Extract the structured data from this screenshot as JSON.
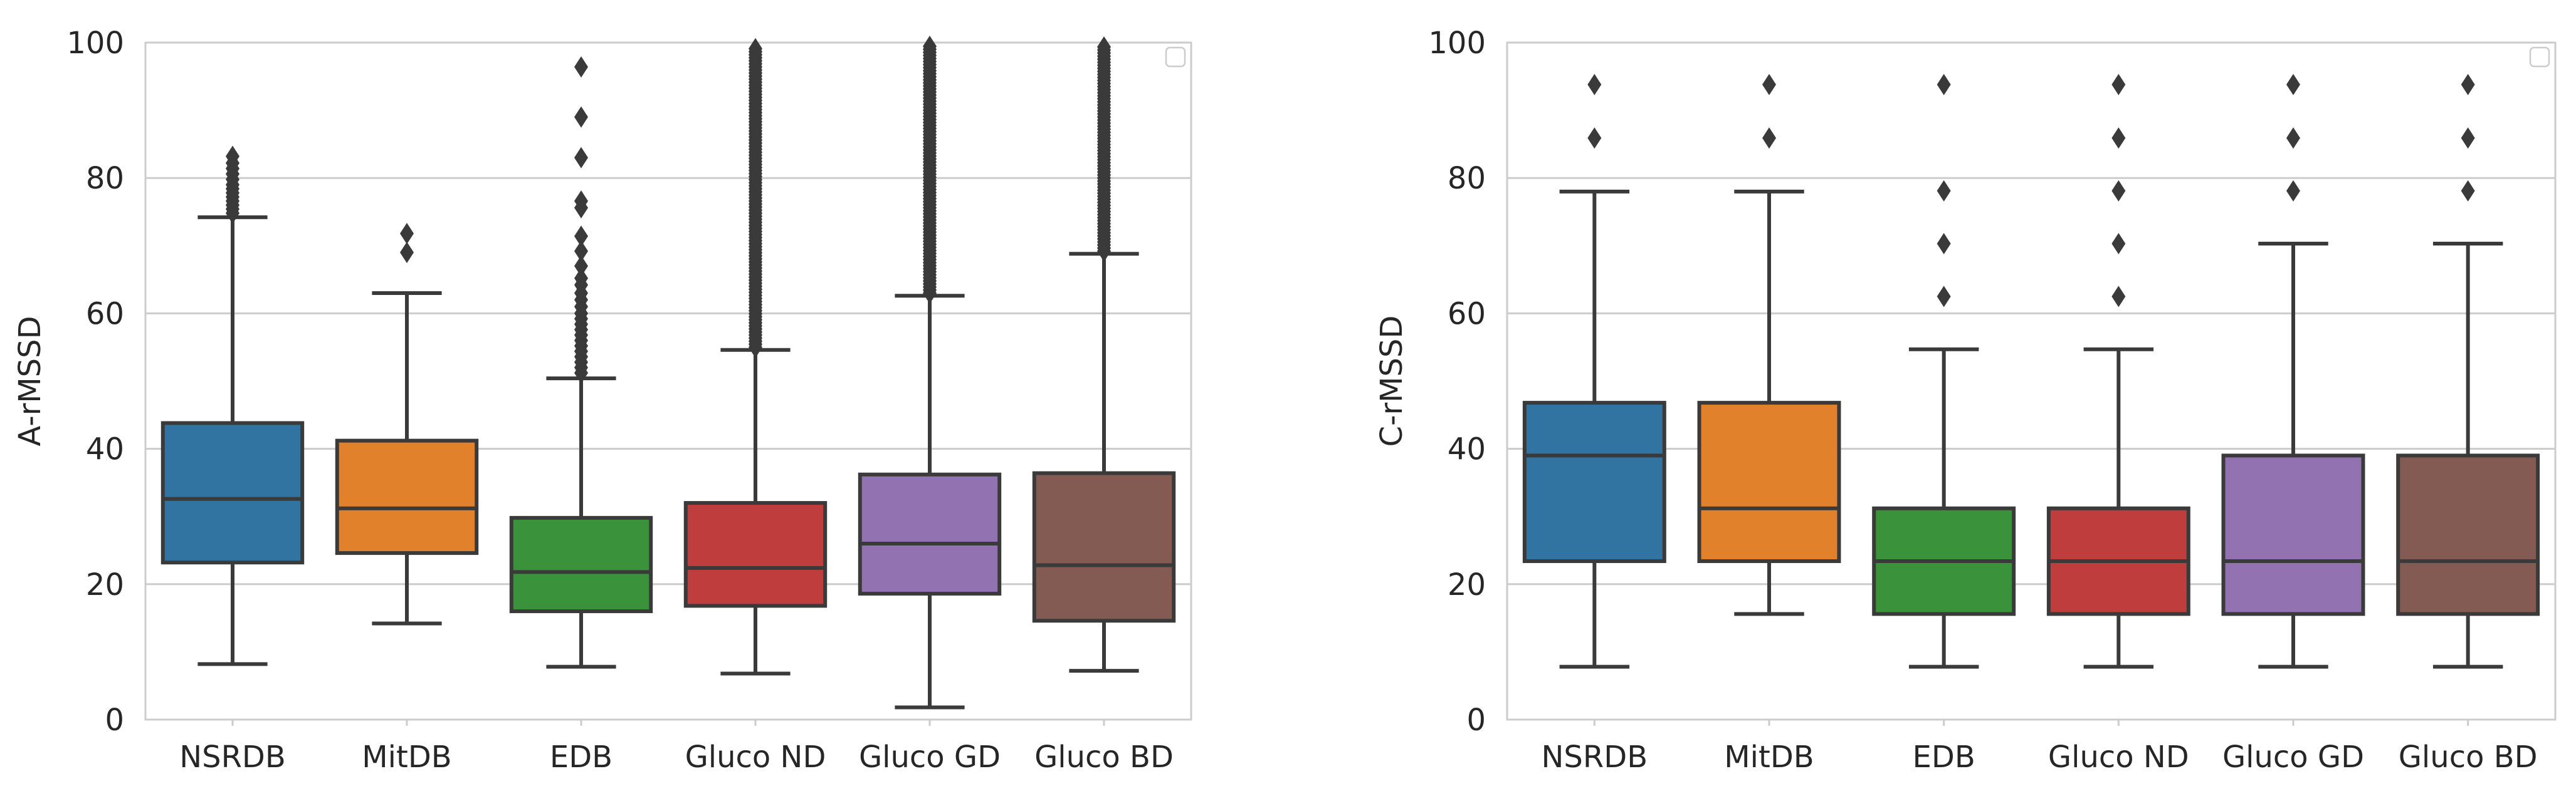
{
  "chart_data": [
    {
      "type": "box",
      "title": "",
      "xlabel": "",
      "ylabel": "A-rMSSD",
      "ylim": [
        0,
        100
      ],
      "yticks": [
        0,
        20,
        40,
        60,
        80,
        100
      ],
      "grid": "horizontal",
      "legend": "top-right (empty)",
      "categories": [
        "NSRDB",
        "MitDB",
        "EDB",
        "Gluco ND",
        "Gluco GD",
        "Gluco BD"
      ],
      "colors": [
        "#3274a1",
        "#e1812c",
        "#3a923a",
        "#c03d3e",
        "#9372b2",
        "#845b53"
      ],
      "boxes": [
        {
          "whisker_low": 8.2,
          "q1": 23.2,
          "median": 32.6,
          "q3": 43.8,
          "whisker_high": 74.2,
          "outliers": [
            74.8,
            75.4,
            76.0,
            76.6,
            77.2,
            77.8,
            78.4,
            79.0,
            79.8,
            80.6,
            81.4,
            82.2,
            83.2
          ]
        },
        {
          "whisker_low": 14.2,
          "q1": 24.6,
          "median": 31.2,
          "q3": 41.2,
          "whisker_high": 63.0,
          "outliers": [
            69.0,
            71.8
          ]
        },
        {
          "whisker_low": 7.8,
          "q1": 16.0,
          "median": 21.8,
          "q3": 29.8,
          "whisker_high": 50.4,
          "outliers": [
            51.2,
            52.0,
            52.8,
            53.6,
            54.4,
            55.2,
            56.0,
            56.8,
            57.6,
            58.4,
            59.2,
            60.0,
            61.0,
            62.0,
            63.0,
            64.2,
            65.2,
            67.0,
            69.2,
            71.4,
            75.6,
            76.6,
            83.0,
            89.0,
            96.4
          ]
        },
        {
          "whisker_low": 6.8,
          "q1": 16.8,
          "median": 22.4,
          "q3": 32.0,
          "whisker_high": 54.6,
          "outliers_dense_range": [
            55.0,
            99.5
          ]
        },
        {
          "whisker_low": 1.8,
          "q1": 18.6,
          "median": 26.0,
          "q3": 36.2,
          "whisker_high": 62.6,
          "outliers_dense_range": [
            63.0,
            99.5
          ]
        },
        {
          "whisker_low": 7.2,
          "q1": 14.6,
          "median": 22.8,
          "q3": 36.4,
          "whisker_high": 68.8,
          "outliers_dense_range": [
            69.2,
            99.5
          ]
        }
      ]
    },
    {
      "type": "box",
      "title": "",
      "xlabel": "",
      "ylabel": "C-rMSSD",
      "ylim": [
        0,
        100
      ],
      "yticks": [
        0,
        20,
        40,
        60,
        80,
        100
      ],
      "grid": "horizontal",
      "legend": "top-right (empty)",
      "categories": [
        "NSRDB",
        "MitDB",
        "EDB",
        "Gluco ND",
        "Gluco GD",
        "Gluco BD"
      ],
      "colors": [
        "#3274a1",
        "#e1812c",
        "#3a923a",
        "#c03d3e",
        "#9372b2",
        "#845b53"
      ],
      "boxes": [
        {
          "whisker_low": 7.8,
          "q1": 23.4,
          "median": 39.0,
          "q3": 46.8,
          "whisker_high": 78.0,
          "outliers": [
            85.9,
            93.8
          ]
        },
        {
          "whisker_low": 15.6,
          "q1": 23.4,
          "median": 31.2,
          "q3": 46.8,
          "whisker_high": 78.0,
          "outliers": [
            85.9,
            93.8
          ]
        },
        {
          "whisker_low": 7.8,
          "q1": 15.6,
          "median": 23.4,
          "q3": 31.2,
          "whisker_high": 54.7,
          "outliers": [
            62.5,
            70.3,
            78.1,
            93.8
          ]
        },
        {
          "whisker_low": 7.8,
          "q1": 15.6,
          "median": 23.4,
          "q3": 31.2,
          "whisker_high": 54.7,
          "outliers": [
            62.5,
            70.3,
            78.1,
            85.9,
            93.8
          ]
        },
        {
          "whisker_low": 7.8,
          "q1": 15.6,
          "median": 23.4,
          "q3": 39.0,
          "whisker_high": 70.3,
          "outliers": [
            78.1,
            85.9,
            93.8
          ]
        },
        {
          "whisker_low": 7.8,
          "q1": 15.6,
          "median": 23.4,
          "q3": 39.0,
          "whisker_high": 70.3,
          "outliers": [
            78.1,
            85.9,
            93.8
          ]
        }
      ]
    }
  ]
}
